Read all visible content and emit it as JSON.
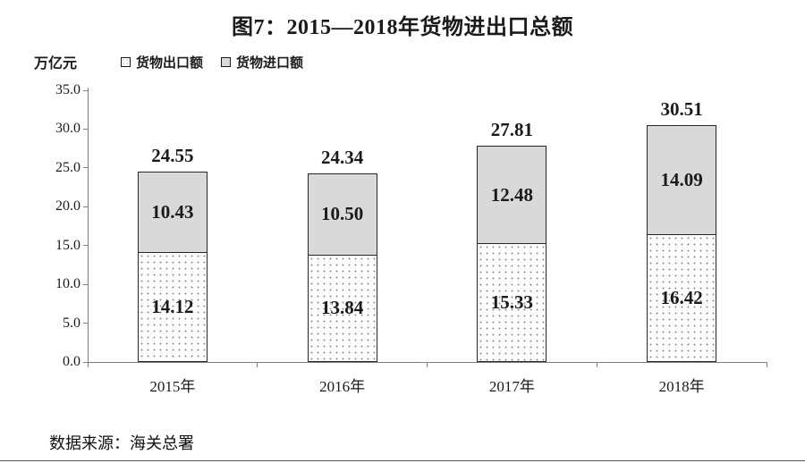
{
  "title": "图7：2015—2018年货物进出口总额",
  "unit_label": "万亿元",
  "legend": {
    "items": [
      {
        "label": "货物出口额",
        "swatch": "dotted"
      },
      {
        "label": "货物进口额",
        "swatch": "gray"
      }
    ]
  },
  "source": "数据来源：海关总署",
  "colors": {
    "import_fill": "#d9d9d9",
    "export_fill": "#ffffff",
    "export_dot": "#8f8f8f",
    "axis": "#7f7f7f",
    "bar_border": "#262626",
    "text": "#1a1a1a"
  },
  "chart_data": {
    "type": "bar",
    "stacked": true,
    "title": "图7：2015—2018年货物进出口总额",
    "ylabel": "万亿元",
    "categories": [
      "2015年",
      "2016年",
      "2017年",
      "2018年"
    ],
    "series": [
      {
        "name": "货物出口额",
        "style": "dotted",
        "values": [
          14.12,
          13.84,
          15.33,
          16.42
        ]
      },
      {
        "name": "货物进口额",
        "style": "gray",
        "values": [
          10.43,
          10.5,
          12.48,
          14.09
        ]
      }
    ],
    "totals": [
      24.55,
      24.34,
      27.81,
      30.51
    ],
    "ylim": [
      0,
      35
    ],
    "ytick_step": 5,
    "grid": false,
    "legend_position": "top-left"
  }
}
